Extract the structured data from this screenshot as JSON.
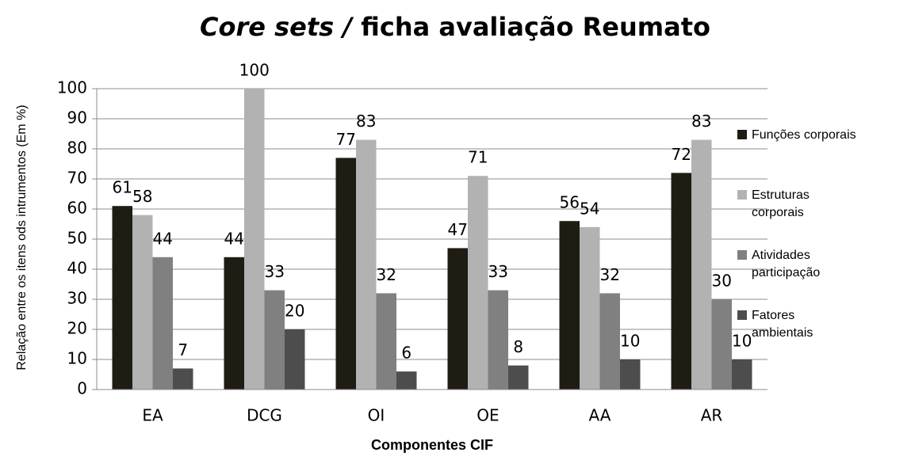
{
  "chart_data": {
    "type": "bar",
    "title": {
      "italic": "Core sets /",
      "plain": "ficha avaliação Reumato"
    },
    "x_label": "Componentes CIF",
    "y_label": "Relação entre os itens ods intrumentos (Em %)",
    "categories": [
      "EA",
      "DCG",
      "OI",
      "OE",
      "AA",
      "AR"
    ],
    "series": [
      {
        "name": "Funções corporais",
        "color": "#1f1c14",
        "values": [
          61,
          44,
          77,
          47,
          56,
          72
        ]
      },
      {
        "name": "Estruturas corporais",
        "color": "#b2b2b2",
        "values": [
          58,
          100,
          83,
          71,
          54,
          83
        ]
      },
      {
        "name": "Atividades participação",
        "color": "#808080",
        "values": [
          44,
          33,
          32,
          33,
          32,
          30
        ]
      },
      {
        "name": "Fatores ambientais",
        "color": "#4d4d4d",
        "values": [
          7,
          20,
          6,
          8,
          10,
          10
        ]
      }
    ],
    "ylim": [
      0,
      100
    ],
    "yticks": [
      0,
      10,
      20,
      30,
      40,
      50,
      60,
      70,
      80,
      90,
      100
    ],
    "grid": true,
    "legend": "right"
  }
}
